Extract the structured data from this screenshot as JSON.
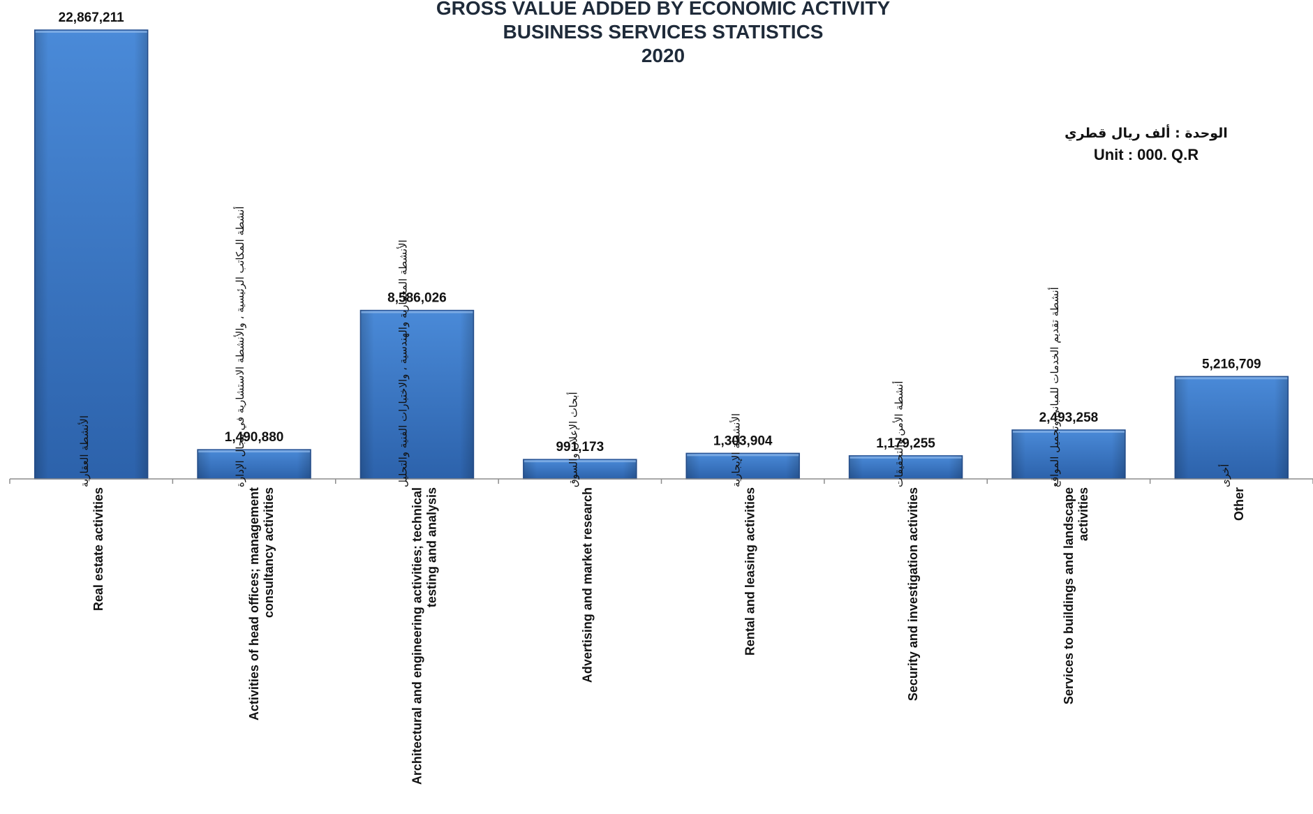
{
  "chart_data": {
    "type": "bar",
    "title": [
      "GROSS VALUE ADDED BY ECONOMIC ACTIVITY",
      "BUSINESS SERVICES STATISTICS",
      "2020"
    ],
    "unit": {
      "arabic": "الوحدة :  ألف ريال قطري",
      "english": "Unit : 000. Q.R"
    },
    "categories": [
      {
        "arabic": "الأنشطة العقارية",
        "english": [
          "Real estate activities"
        ]
      },
      {
        "arabic": "أنشطة المكاتب الرئيسية ، والأنشطة الاستشارية في مجال الإدارة",
        "english": [
          "Activities of head offices; management",
          "consultancy activities"
        ]
      },
      {
        "arabic": "الأنشطة المعمارية والهندسية ، والاختبارات الفنية والتحليل",
        "english": [
          "Architectural and engineering activities; technical",
          "testing and analysis"
        ]
      },
      {
        "arabic": "أبحاث الإعلان والسوق",
        "english": [
          "Advertising and market research"
        ]
      },
      {
        "arabic": "الأنشطة الإيجارية",
        "english": [
          "Rental and leasing activities"
        ]
      },
      {
        "arabic": "أنشطة الأمن والتحقيقات",
        "english": [
          "Security and investigation activities"
        ]
      },
      {
        "arabic": "أنشطة تقديم الخدمات للمباني وتجميل المواقع",
        "english": [
          "Services to buildings and landscape",
          "activities"
        ]
      },
      {
        "arabic": "أخرى",
        "english": [
          "Other"
        ]
      }
    ],
    "values": [
      22867211,
      1490880,
      8586026,
      991173,
      1303904,
      1179255,
      2493258,
      5216709
    ],
    "value_labels": [
      "22,867,211",
      "1,490,880",
      "8,586,026",
      "991,173",
      "1,303,904",
      "1,179,255",
      "2,493,258",
      "5,216,709"
    ],
    "ylim": [
      0,
      22867211
    ],
    "grid": false,
    "legend": "none",
    "colors": {
      "bar_top": "#4a8ad8",
      "bar_bottom": "#2c62ab",
      "bar_stroke": "#2a5596",
      "axis": "#8c8c8c"
    }
  }
}
